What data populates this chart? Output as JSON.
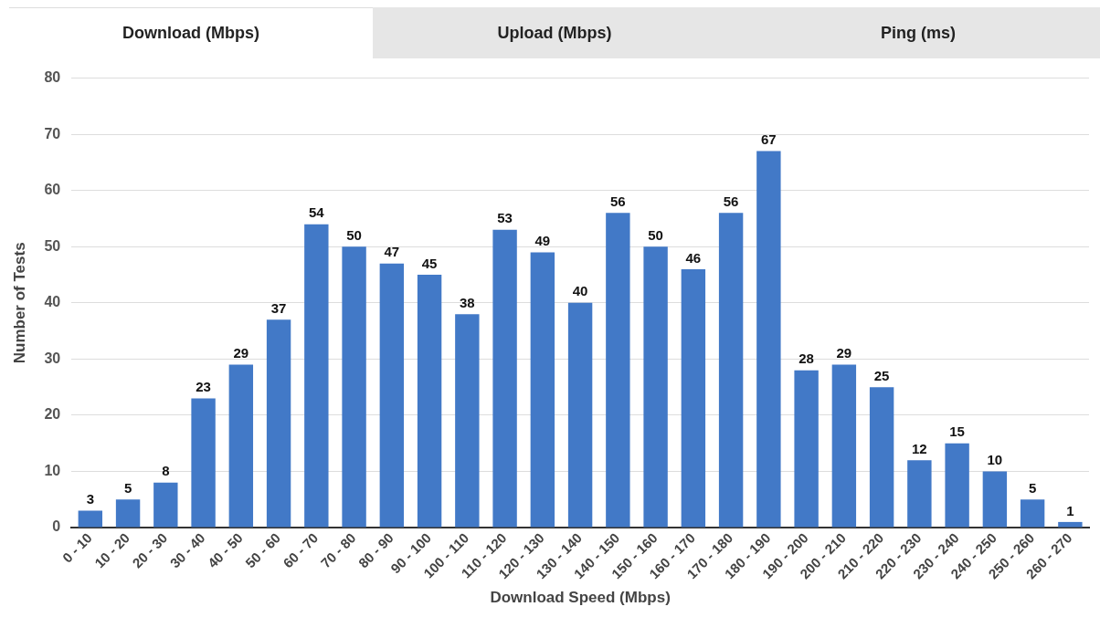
{
  "chart_data": {
    "type": "bar",
    "xlabel": "Download Speed (Mbps)",
    "ylabel": "Number of Tests",
    "annotations": [
      "Download (Mbps)",
      "Upload (Mbps)",
      "Ping (ms)"
    ],
    "categories": [
      "0 - 10",
      "10 - 20",
      "20 - 30",
      "30 - 40",
      "40 - 50",
      "50 - 60",
      "60 - 70",
      "70 - 80",
      "80 - 90",
      "90 - 100",
      "100 - 110",
      "110 - 120",
      "120 - 130",
      "130 - 140",
      "140 - 150",
      "150 - 160",
      "160 - 170",
      "170 - 180",
      "180 - 190",
      "190 - 200",
      "200 - 210",
      "210 - 220",
      "220 - 230",
      "230 - 240",
      "240 - 250",
      "250 - 260",
      "260 - 270"
    ],
    "values": [
      3,
      5,
      8,
      23,
      29,
      37,
      54,
      50,
      47,
      45,
      38,
      53,
      49,
      40,
      56,
      50,
      46,
      56,
      67,
      28,
      29,
      25,
      12,
      15,
      10,
      5,
      1
    ],
    "color": "#4279c7",
    "ylim": [
      0,
      80
    ],
    "yticks": [
      0,
      10,
      20,
      30,
      40,
      50,
      60,
      70,
      80
    ],
    "grid": "y",
    "legend": false,
    "data_labels": true
  }
}
